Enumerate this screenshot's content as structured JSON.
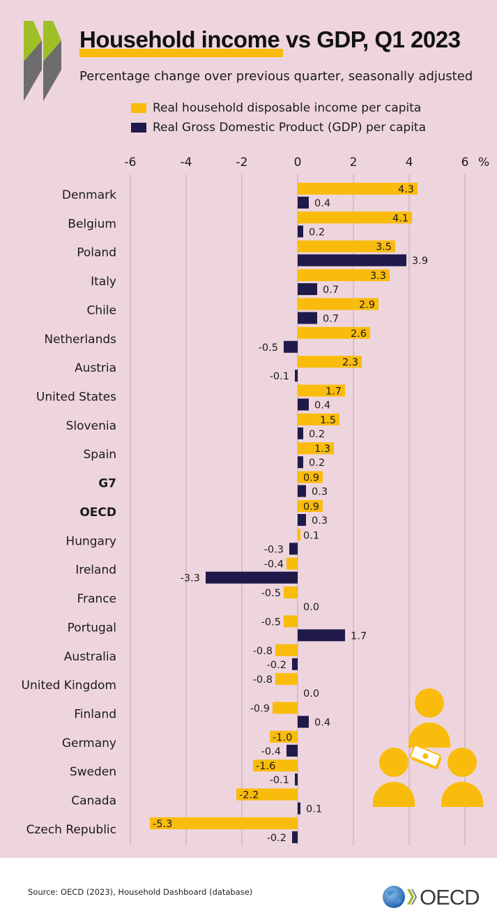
{
  "header": {
    "title": "Household income vs GDP, Q1 2023",
    "subtitle": "Percentage change over previous quarter, seasonally adjusted"
  },
  "legend": [
    {
      "label": "Real household disposable income per capita",
      "color": "#f9bc0c"
    },
    {
      "label": "Real Gross Domestic Product (GDP) per capita",
      "color": "#1f1a4a"
    }
  ],
  "footer": {
    "source": "Source: OECD (2023), Household Dashboard (database)",
    "logo_text": "OECD"
  },
  "colors": {
    "background": "#eed5dd",
    "income": "#f9bc0c",
    "gdp": "#1f1a4a",
    "grid": "#b8a9b3",
    "logo_green": "#9fbf27",
    "logo_grey": "#6d6d6d"
  },
  "chart_data": {
    "type": "bar",
    "orientation": "horizontal",
    "title": "Household income vs GDP, Q1 2023",
    "subtitle": "Percentage change over previous quarter, seasonally adjusted",
    "unit_label": "%",
    "xlim": [
      -6,
      6
    ],
    "xticks": [
      -6,
      -4,
      -2,
      0,
      2,
      4,
      6
    ],
    "grid": true,
    "legend_position": "top",
    "categories": [
      "Denmark",
      "Belgium",
      "Poland",
      "Italy",
      "Chile",
      "Netherlands",
      "Austria",
      "United States",
      "Slovenia",
      "Spain",
      "G7",
      "OECD",
      "Hungary",
      "Ireland",
      "France",
      "Portugal",
      "Australia",
      "United Kingdom",
      "Finland",
      "Germany",
      "Sweden",
      "Canada",
      "Czech Republic"
    ],
    "bold_categories": [
      "G7",
      "OECD"
    ],
    "series": [
      {
        "name": "Real household disposable income per capita",
        "values": [
          4.3,
          4.1,
          3.5,
          3.3,
          2.9,
          2.6,
          2.3,
          1.7,
          1.5,
          1.3,
          0.9,
          0.9,
          0.1,
          -0.4,
          -0.5,
          -0.5,
          -0.8,
          -0.8,
          -0.9,
          -1.0,
          -1.6,
          -2.2,
          -5.3
        ],
        "labels": [
          "4.3",
          "4.1",
          "3.5",
          "3.3",
          "2.9",
          "2.6",
          "2.3",
          "1.7",
          "1.5",
          "1.3",
          "0.9",
          "0.9",
          "0.1",
          "-0.4",
          "-0.5",
          "-0.5",
          "-0.8",
          "-0.8",
          "-0.9",
          "-1.0",
          "-1.6",
          "-2.2",
          "-5.3"
        ]
      },
      {
        "name": "Real Gross Domestic Product (GDP) per capita",
        "values": [
          0.4,
          0.2,
          3.9,
          0.7,
          0.7,
          -0.5,
          -0.1,
          0.4,
          0.2,
          0.2,
          0.3,
          0.3,
          -0.3,
          -3.3,
          0.0,
          1.7,
          -0.2,
          0.0,
          0.4,
          -0.4,
          -0.1,
          0.1,
          -0.2
        ],
        "labels": [
          "0.4",
          "0.2",
          "3.9",
          "0.7",
          "0.7",
          "-0.5",
          "-0.1",
          "0.4",
          "0.2",
          "0.2",
          "0.3",
          "0.3",
          "-0.3",
          "-3.3",
          "0.0",
          "1.7",
          "-0.2",
          "0.0",
          "0.4",
          "-0.4",
          "-0.1",
          "0.1",
          "-0.2"
        ]
      }
    ]
  }
}
